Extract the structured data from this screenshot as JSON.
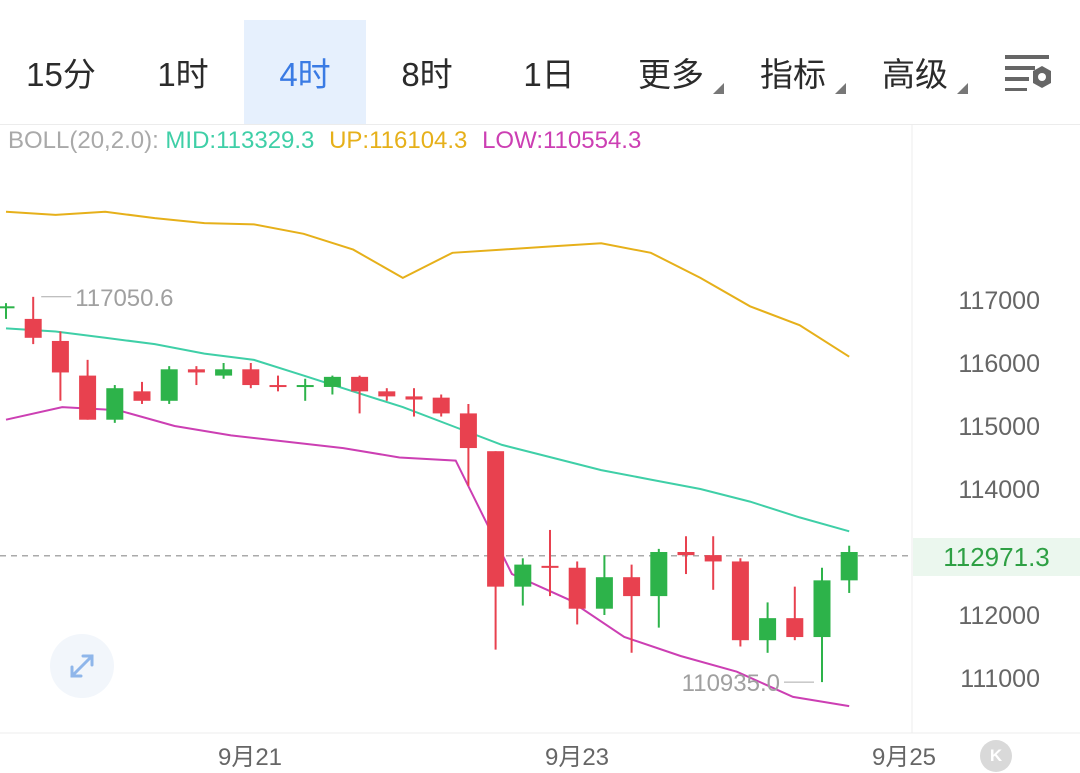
{
  "tabs": [
    {
      "label": "15分",
      "active": false,
      "has_menu": false
    },
    {
      "label": "1时",
      "active": false,
      "has_menu": false
    },
    {
      "label": "4时",
      "active": true,
      "has_menu": false
    },
    {
      "label": "8时",
      "active": false,
      "has_menu": false
    },
    {
      "label": "1日",
      "active": false,
      "has_menu": false
    },
    {
      "label": "更多",
      "active": false,
      "has_menu": true
    },
    {
      "label": "指标",
      "active": false,
      "has_menu": true
    },
    {
      "label": "高级",
      "active": false,
      "has_menu": true
    }
  ],
  "settings_icon": "chart-settings-icon",
  "boll": {
    "label": "BOLL(20,2.0):",
    "mid": "MID:113329.3",
    "up": "UP:116104.3",
    "low": "LOW:110554.3"
  },
  "colors": {
    "active_tab": "#3a7be4",
    "up_candle": "#2db34a",
    "down_candle": "#e8414f",
    "mid_line": "#3fcfa7",
    "up_line": "#e6b01a",
    "low_line": "#cc3fb3"
  },
  "current_price": "112971.3",
  "chart_data": {
    "type": "candlestick",
    "y_ticks": [
      "117000",
      "116000",
      "115000",
      "114000",
      "112000",
      "111000"
    ],
    "x_ticks": [
      "9月21",
      "9月23",
      "9月25"
    ],
    "max_label": "117050.6",
    "min_label": "110935.0",
    "current_price": 112971.3,
    "ylim": [
      110200,
      119200
    ],
    "candles": [
      {
        "o": 116870,
        "h": 116950,
        "l": 116700,
        "c": 116900
      },
      {
        "o": 116700,
        "h": 117050,
        "l": 116300,
        "c": 116400
      },
      {
        "o": 116350,
        "h": 116500,
        "l": 115400,
        "c": 115850
      },
      {
        "o": 115800,
        "h": 116050,
        "l": 115100,
        "c": 115100
      },
      {
        "o": 115100,
        "h": 115650,
        "l": 115050,
        "c": 115600
      },
      {
        "o": 115550,
        "h": 115700,
        "l": 115350,
        "c": 115400
      },
      {
        "o": 115400,
        "h": 115950,
        "l": 115350,
        "c": 115900
      },
      {
        "o": 115900,
        "h": 115950,
        "l": 115650,
        "c": 115850
      },
      {
        "o": 115800,
        "h": 116000,
        "l": 115750,
        "c": 115900
      },
      {
        "o": 115900,
        "h": 116000,
        "l": 115600,
        "c": 115650
      },
      {
        "o": 115650,
        "h": 115800,
        "l": 115550,
        "c": 115630
      },
      {
        "o": 115630,
        "h": 115750,
        "l": 115400,
        "c": 115650
      },
      {
        "o": 115620,
        "h": 115800,
        "l": 115500,
        "c": 115780
      },
      {
        "o": 115780,
        "h": 115800,
        "l": 115200,
        "c": 115550
      },
      {
        "o": 115550,
        "h": 115600,
        "l": 115400,
        "c": 115470
      },
      {
        "o": 115470,
        "h": 115600,
        "l": 115150,
        "c": 115420
      },
      {
        "o": 115450,
        "h": 115500,
        "l": 115150,
        "c": 115200
      },
      {
        "o": 115200,
        "h": 115350,
        "l": 114050,
        "c": 114650
      },
      {
        "o": 114600,
        "h": 114600,
        "l": 111450,
        "c": 112450
      },
      {
        "o": 112450,
        "h": 112900,
        "l": 112150,
        "c": 112800
      },
      {
        "o": 112780,
        "h": 113350,
        "l": 112300,
        "c": 112750
      },
      {
        "o": 112750,
        "h": 112850,
        "l": 111850,
        "c": 112100
      },
      {
        "o": 112100,
        "h": 112950,
        "l": 112000,
        "c": 112600
      },
      {
        "o": 112600,
        "h": 112800,
        "l": 111400,
        "c": 112300
      },
      {
        "o": 112300,
        "h": 113050,
        "l": 111800,
        "c": 113000
      },
      {
        "o": 113000,
        "h": 113250,
        "l": 112650,
        "c": 112950
      },
      {
        "o": 112950,
        "h": 113250,
        "l": 112400,
        "c": 112850
      },
      {
        "o": 112850,
        "h": 112900,
        "l": 111500,
        "c": 111600
      },
      {
        "o": 111600,
        "h": 112200,
        "l": 111400,
        "c": 111950
      },
      {
        "o": 111950,
        "h": 112450,
        "l": 111600,
        "c": 111650
      },
      {
        "o": 111650,
        "h": 112750,
        "l": 110935,
        "c": 112550
      },
      {
        "o": 112550,
        "h": 113100,
        "l": 112350,
        "c": 113000
      }
    ],
    "mid": [
      116550,
      116500,
      116400,
      116300,
      116150,
      116050,
      115800,
      115550,
      115300,
      115000,
      114700,
      114500,
      114300,
      114150,
      114000,
      113800,
      113550,
      113329
    ],
    "up": [
      118400,
      118350,
      118400,
      118300,
      118220,
      118200,
      118050,
      117800,
      117350,
      117750,
      117800,
      117850,
      117900,
      117750,
      117350,
      116900,
      116600,
      116100
    ],
    "low": [
      115100,
      115300,
      115250,
      115000,
      114850,
      114750,
      114650,
      114500,
      114450,
      112650,
      112250,
      111650,
      111350,
      111100,
      110700,
      110554
    ]
  }
}
